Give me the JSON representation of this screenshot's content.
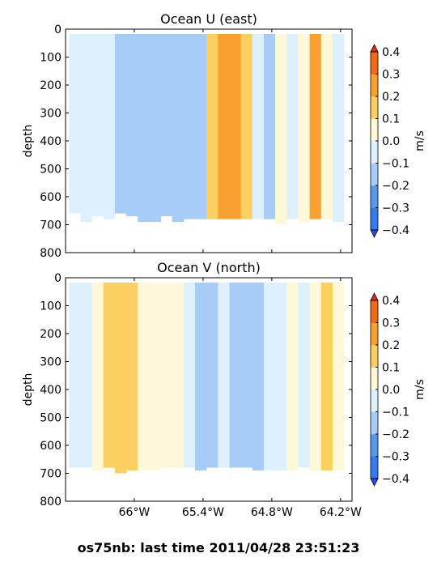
{
  "footer": "os75nb: last time 2011/04/28 23:51:23",
  "chart_data": [
    {
      "type": "heatmap",
      "title": "Ocean U (east)",
      "ylabel": "depth",
      "y_inverted": true,
      "ylim": [
        800,
        0
      ],
      "yticks": [
        "0",
        "100",
        "200",
        "300",
        "400",
        "500",
        "600",
        "700",
        "800"
      ],
      "xlim": [
        -66.6,
        -64.1
      ],
      "xticks": [],
      "colorbar": {
        "label": "m/s",
        "ticks": [
          "0.4",
          "0.3",
          "0.2",
          "0.1",
          "0.0",
          "−0.1",
          "−0.2",
          "−0.3",
          "−0.4"
        ],
        "levels": [
          -0.4,
          -0.3,
          -0.2,
          -0.1,
          0.0,
          0.1,
          0.2,
          0.3,
          0.4
        ],
        "colors": [
          "#2c49f0",
          "#3a78ee",
          "#5a98f0",
          "#a8ccf8",
          "#ddf0fc",
          "#fcf8d8",
          "#fcd060",
          "#f8a030",
          "#f06a18",
          "#d83010"
        ]
      },
      "columns": [
        {
          "x0": -66.57,
          "x1": -66.47,
          "value": -0.08,
          "bottom": 660
        },
        {
          "x0": -66.47,
          "x1": -66.37,
          "value": -0.05,
          "bottom": 690
        },
        {
          "x0": -66.37,
          "x1": -66.27,
          "value": -0.08,
          "bottom": 670
        },
        {
          "x0": -66.27,
          "x1": -66.17,
          "value": -0.06,
          "bottom": 680
        },
        {
          "x0": -66.17,
          "x1": -66.07,
          "value": -0.12,
          "bottom": 660
        },
        {
          "x0": -66.07,
          "x1": -65.97,
          "value": -0.15,
          "bottom": 670
        },
        {
          "x0": -65.97,
          "x1": -65.87,
          "value": -0.18,
          "bottom": 690
        },
        {
          "x0": -65.87,
          "x1": -65.77,
          "value": -0.17,
          "bottom": 690
        },
        {
          "x0": -65.77,
          "x1": -65.67,
          "value": -0.16,
          "bottom": 670
        },
        {
          "x0": -65.67,
          "x1": -65.57,
          "value": -0.13,
          "bottom": 690
        },
        {
          "x0": -65.57,
          "x1": -65.47,
          "value": -0.18,
          "bottom": 680
        },
        {
          "x0": -65.47,
          "x1": -65.37,
          "value": -0.12,
          "bottom": 680
        },
        {
          "x0": -65.37,
          "x1": -65.27,
          "value": 0.17,
          "bottom": 680
        },
        {
          "x0": -65.27,
          "x1": -65.17,
          "value": 0.23,
          "bottom": 680
        },
        {
          "x0": -65.17,
          "x1": -65.07,
          "value": 0.2,
          "bottom": 680
        },
        {
          "x0": -65.07,
          "x1": -64.97,
          "value": 0.16,
          "bottom": 680
        },
        {
          "x0": -64.97,
          "x1": -64.87,
          "value": -0.05,
          "bottom": 680
        },
        {
          "x0": -64.87,
          "x1": -64.77,
          "value": -0.13,
          "bottom": 680
        },
        {
          "x0": -64.77,
          "x1": -64.67,
          "value": 0.06,
          "bottom": 700
        },
        {
          "x0": -64.67,
          "x1": -64.57,
          "value": -0.07,
          "bottom": 680
        },
        {
          "x0": -64.57,
          "x1": -64.47,
          "value": 0.08,
          "bottom": 690
        },
        {
          "x0": -64.47,
          "x1": -64.37,
          "value": 0.24,
          "bottom": 680
        },
        {
          "x0": -64.37,
          "x1": -64.27,
          "value": 0.08,
          "bottom": 680
        },
        {
          "x0": -64.27,
          "x1": -64.17,
          "value": -0.04,
          "bottom": 690
        }
      ]
    },
    {
      "type": "heatmap",
      "title": "Ocean V (north)",
      "ylabel": "depth",
      "y_inverted": true,
      "ylim": [
        800,
        0
      ],
      "yticks": [
        "0",
        "100",
        "200",
        "300",
        "400",
        "500",
        "600",
        "700",
        "800"
      ],
      "xlim": [
        -66.6,
        -64.1
      ],
      "xticks": [
        {
          "value": -66.0,
          "label": "66°W"
        },
        {
          "value": -65.4,
          "label": "65.4°W"
        },
        {
          "value": -64.8,
          "label": "64.8°W"
        },
        {
          "value": -64.2,
          "label": "64.2°W"
        }
      ],
      "colorbar": {
        "label": "m/s",
        "ticks": [
          "0.4",
          "0.3",
          "0.2",
          "0.1",
          "0.0",
          "−0.1",
          "−0.2",
          "−0.3",
          "−0.4"
        ],
        "levels": [
          -0.4,
          -0.3,
          -0.2,
          -0.1,
          0.0,
          0.1,
          0.2,
          0.3,
          0.4
        ],
        "colors": [
          "#2c49f0",
          "#3a78ee",
          "#5a98f0",
          "#a8ccf8",
          "#ddf0fc",
          "#fcf8d8",
          "#fcd060",
          "#f8a030",
          "#f06a18",
          "#d83010"
        ]
      },
      "columns": [
        {
          "x0": -66.57,
          "x1": -66.47,
          "value": -0.05,
          "bottom": 680
        },
        {
          "x0": -66.47,
          "x1": -66.37,
          "value": -0.04,
          "bottom": 680
        },
        {
          "x0": -66.37,
          "x1": -66.27,
          "value": 0.08,
          "bottom": 690
        },
        {
          "x0": -66.27,
          "x1": -66.17,
          "value": 0.14,
          "bottom": 680
        },
        {
          "x0": -66.17,
          "x1": -66.07,
          "value": 0.12,
          "bottom": 700
        },
        {
          "x0": -66.07,
          "x1": -65.97,
          "value": 0.15,
          "bottom": 690
        },
        {
          "x0": -65.97,
          "x1": -65.87,
          "value": 0.08,
          "bottom": 690
        },
        {
          "x0": -65.87,
          "x1": -65.77,
          "value": 0.07,
          "bottom": 690
        },
        {
          "x0": -65.77,
          "x1": -65.67,
          "value": 0.06,
          "bottom": 680
        },
        {
          "x0": -65.67,
          "x1": -65.57,
          "value": 0.03,
          "bottom": 680
        },
        {
          "x0": -65.57,
          "x1": -65.47,
          "value": -0.08,
          "bottom": 680
        },
        {
          "x0": -65.47,
          "x1": -65.37,
          "value": -0.12,
          "bottom": 690
        },
        {
          "x0": -65.37,
          "x1": -65.27,
          "value": -0.14,
          "bottom": 680
        },
        {
          "x0": -65.27,
          "x1": -65.17,
          "value": -0.06,
          "bottom": 680
        },
        {
          "x0": -65.17,
          "x1": -65.07,
          "value": -0.18,
          "bottom": 680
        },
        {
          "x0": -65.07,
          "x1": -64.97,
          "value": -0.16,
          "bottom": 680
        },
        {
          "x0": -64.97,
          "x1": -64.87,
          "value": -0.15,
          "bottom": 690
        },
        {
          "x0": -64.87,
          "x1": -64.77,
          "value": -0.07,
          "bottom": 690
        },
        {
          "x0": -64.77,
          "x1": -64.67,
          "value": -0.02,
          "bottom": 690
        },
        {
          "x0": -64.67,
          "x1": -64.57,
          "value": 0.03,
          "bottom": 690
        },
        {
          "x0": -64.57,
          "x1": -64.47,
          "value": -0.03,
          "bottom": 680
        },
        {
          "x0": -64.47,
          "x1": -64.37,
          "value": 0.08,
          "bottom": 690
        },
        {
          "x0": -64.37,
          "x1": -64.27,
          "value": 0.12,
          "bottom": 690
        },
        {
          "x0": -64.27,
          "x1": -64.17,
          "value": 0.05,
          "bottom": 690
        }
      ]
    }
  ]
}
